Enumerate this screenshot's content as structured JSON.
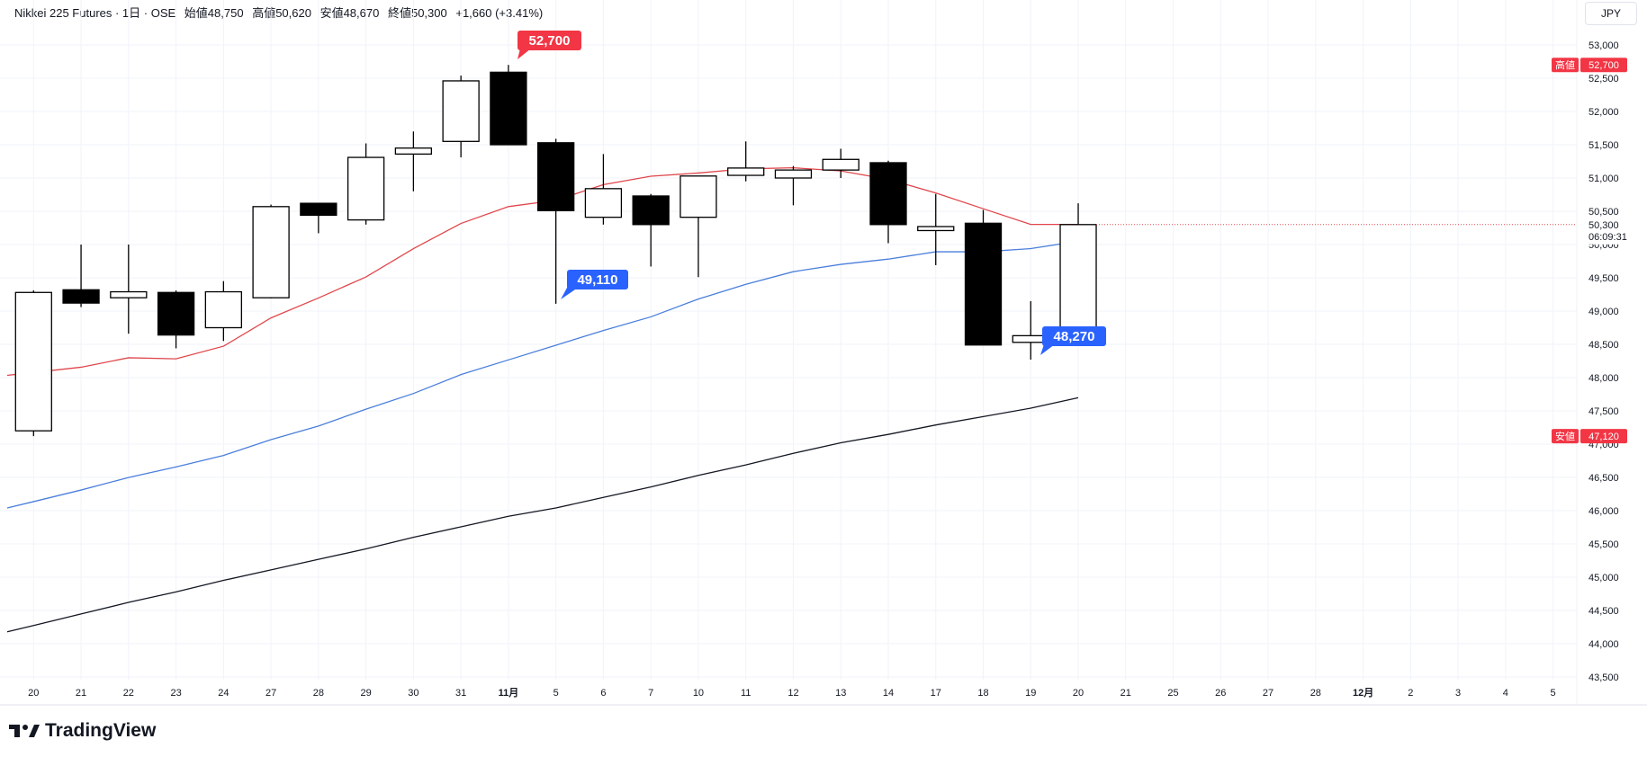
{
  "header": {
    "symbol": "Nikkei 225 Futures · 1日 · OSE",
    "open": "始値48,750",
    "high": "高値50,620",
    "low": "安値48,670",
    "close": "終値50,300",
    "change": "+1,660 (+3.41%)"
  },
  "currency": "JPY",
  "branding": "TradingView",
  "colors": {
    "up_body": "#ffffff",
    "down_body": "#000000",
    "ma_short": "#e0474c",
    "ma_mid": "#4a7fdb",
    "ma_long": "#131722",
    "high_label": "#f23645",
    "low_callout": "#2962ff"
  },
  "chart_data": {
    "type": "candlestick",
    "ylim": [
      43500,
      53000
    ],
    "y_ticks": [
      "53,000",
      "52,500",
      "52,000",
      "51,500",
      "51,000",
      "50,500",
      "50,000",
      "49,500",
      "49,000",
      "48,500",
      "48,000",
      "47,500",
      "47,000",
      "46,500",
      "46,000",
      "45,500",
      "45,000",
      "44,500",
      "44,000",
      "43,500"
    ],
    "x_ticks": [
      "20",
      "21",
      "22",
      "23",
      "24",
      "27",
      "28",
      "29",
      "30",
      "31",
      "11月",
      "5",
      "6",
      "7",
      "10",
      "11",
      "12",
      "13",
      "14",
      "17",
      "18",
      "19",
      "20",
      "21",
      "25",
      "26",
      "27",
      "28",
      "12月",
      "2",
      "3",
      "4",
      "5"
    ],
    "candles": [
      {
        "x": "20",
        "o": 47200,
        "h": 49310,
        "l": 47120,
        "c": 49280
      },
      {
        "x": "21",
        "o": 49320,
        "h": 50000,
        "l": 49060,
        "c": 49120
      },
      {
        "x": "22",
        "o": 49200,
        "h": 50000,
        "l": 48660,
        "c": 49290
      },
      {
        "x": "23",
        "o": 49280,
        "h": 49310,
        "l": 48440,
        "c": 48640
      },
      {
        "x": "24",
        "o": 48750,
        "h": 49450,
        "l": 48550,
        "c": 49290
      },
      {
        "x": "27",
        "o": 49200,
        "h": 50600,
        "l": 49190,
        "c": 50570
      },
      {
        "x": "28",
        "o": 50620,
        "h": 50620,
        "l": 50170,
        "c": 50440
      },
      {
        "x": "29",
        "o": 50370,
        "h": 51520,
        "l": 50300,
        "c": 51310
      },
      {
        "x": "30",
        "o": 51360,
        "h": 51700,
        "l": 50800,
        "c": 51450
      },
      {
        "x": "31",
        "o": 51550,
        "h": 52540,
        "l": 51310,
        "c": 52460
      },
      {
        "x": "11月",
        "o": 52590,
        "h": 52700,
        "l": 51500,
        "c": 51500
      },
      {
        "x": "5",
        "o": 51530,
        "h": 51590,
        "l": 49110,
        "c": 50510
      },
      {
        "x": "6",
        "o": 50410,
        "h": 51360,
        "l": 50300,
        "c": 50840
      },
      {
        "x": "7",
        "o": 50730,
        "h": 50760,
        "l": 49670,
        "c": 50300
      },
      {
        "x": "10",
        "o": 50410,
        "h": 51030,
        "l": 49510,
        "c": 51030
      },
      {
        "x": "11",
        "o": 51040,
        "h": 51550,
        "l": 50950,
        "c": 51150
      },
      {
        "x": "12",
        "o": 51000,
        "h": 51180,
        "l": 50590,
        "c": 51120
      },
      {
        "x": "13",
        "o": 51120,
        "h": 51440,
        "l": 51000,
        "c": 51280
      },
      {
        "x": "14",
        "o": 51230,
        "h": 51260,
        "l": 50020,
        "c": 50300
      },
      {
        "x": "17",
        "o": 50210,
        "h": 50760,
        "l": 49690,
        "c": 50270
      },
      {
        "x": "18",
        "o": 50320,
        "h": 50520,
        "l": 48490,
        "c": 48490
      },
      {
        "x": "19",
        "o": 48530,
        "h": 49150,
        "l": 48270,
        "c": 48630
      },
      {
        "x": "20",
        "o": 48750,
        "h": 50620,
        "l": 48670,
        "c": 50300
      }
    ],
    "moving_averages": [
      {
        "color": "#e0474c",
        "values": [
          48077,
          48156,
          48298,
          48282,
          48472,
          48897,
          49197,
          49513,
          49939,
          50317,
          50570,
          50665,
          50901,
          51027,
          51075,
          51138,
          51154,
          51106,
          50980,
          50775,
          50538,
          50302,
          50302
        ]
      },
      {
        "color": "#4a7fdb",
        "values": [
          46136,
          46310,
          46499,
          46657,
          46830,
          47067,
          47272,
          47525,
          47761,
          48045,
          48266,
          48487,
          48708,
          48913,
          49181,
          49402,
          49592,
          49702,
          49781,
          49891,
          49891,
          49939,
          50050
        ]
      },
      {
        "color": "#131722",
        "values": [
          44274,
          44447,
          44621,
          44779,
          44952,
          45110,
          45268,
          45426,
          45600,
          45757,
          45915,
          46041,
          46199,
          46357,
          46530,
          46688,
          46862,
          47020,
          47146,
          47288,
          47414,
          47540,
          47698
        ]
      }
    ],
    "annotations": {
      "high_callout": "52,700",
      "low_callout_1": "49,110",
      "low_callout_2": "48,270"
    },
    "axis_labels": {
      "high_tag": "高値",
      "high_value": "52,700",
      "low_tag": "安値",
      "low_value": "47,120",
      "last_price": "50,300",
      "countdown": "06:09:31"
    }
  }
}
